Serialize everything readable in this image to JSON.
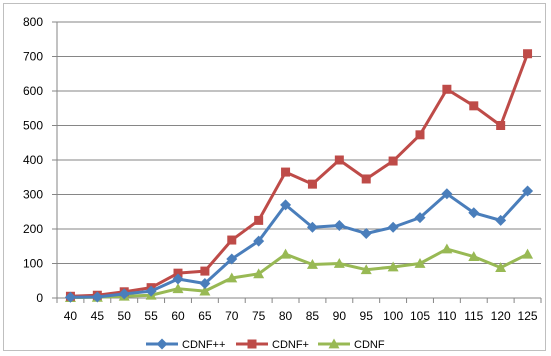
{
  "chart_data": {
    "type": "line",
    "x": [
      40,
      45,
      50,
      55,
      60,
      65,
      70,
      75,
      80,
      85,
      90,
      95,
      100,
      105,
      110,
      115,
      120,
      125
    ],
    "x_tick_labels": [
      "40",
      "45",
      "50",
      "55",
      "60",
      "65",
      "70",
      "75",
      "80",
      "85",
      "90",
      "95",
      "100",
      "105",
      "110",
      "115",
      "120",
      "125"
    ],
    "y_tick_labels": [
      "0",
      "100",
      "200",
      "300",
      "400",
      "500",
      "600",
      "700",
      "800"
    ],
    "ylim": [
      0,
      800
    ],
    "grid": "horizontal",
    "legend_position": "bottom",
    "series": [
      {
        "name": "CDNF++",
        "color": "#4a7ebb",
        "marker": "diamond",
        "values": [
          2,
          3,
          12,
          20,
          55,
          42,
          113,
          165,
          270,
          205,
          210,
          187,
          205,
          233,
          302,
          247,
          225,
          310
        ]
      },
      {
        "name": "CDNF+",
        "color": "#be4b48",
        "marker": "square",
        "values": [
          5,
          8,
          18,
          30,
          72,
          78,
          168,
          225,
          365,
          330,
          400,
          345,
          397,
          473,
          605,
          557,
          500,
          708
        ]
      },
      {
        "name": "CDNF",
        "color": "#98b954",
        "marker": "triangle",
        "values": [
          1,
          2,
          5,
          8,
          27,
          20,
          58,
          70,
          127,
          97,
          100,
          82,
          90,
          100,
          142,
          120,
          88,
          127
        ]
      }
    ]
  }
}
